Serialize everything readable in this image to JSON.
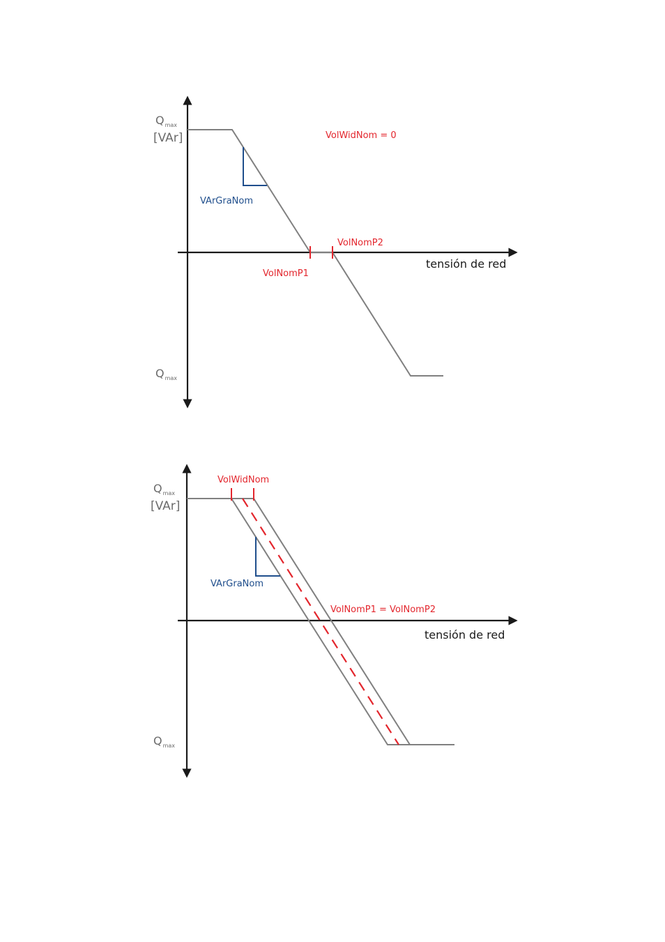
{
  "diagram1": {
    "q_label": "Q",
    "q_sub": "max",
    "unit": "[VAr]",
    "q_label_bottom": "Q",
    "q_sub_bottom": "max",
    "x_label": "tensión de red",
    "param_label": "VolWidNom = 0",
    "slope_label": "VArGraNom",
    "p1_label": "VolNomP1",
    "p2_label": "VolNomP2"
  },
  "diagram2": {
    "q_label": "Q",
    "q_sub": "max",
    "unit": "[VAr]",
    "q_label_bottom": "Q",
    "q_sub_bottom": "max",
    "x_label": "tensión de red",
    "width_label": "VolWidNom",
    "slope_label": "VArGraNom",
    "p_label": "VolNomP1 = VolNomP2"
  },
  "colors": {
    "axis": "#1a1a1a",
    "curve": "#808080",
    "red": "#e3262d",
    "blue": "#1f4e8c"
  }
}
